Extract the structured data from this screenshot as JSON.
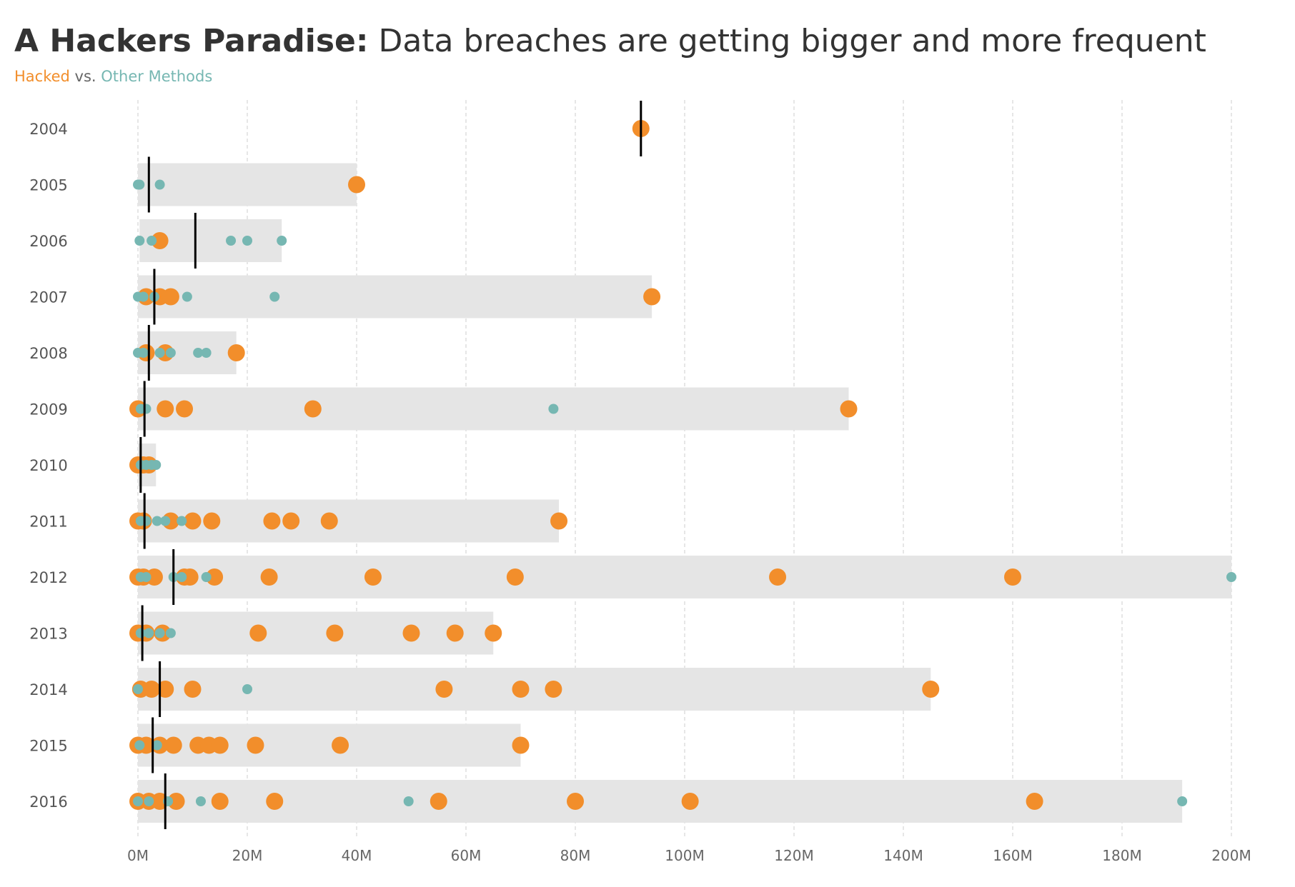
{
  "title": {
    "bold": "A Hackers Paradise:",
    "rest": " Data breaches are getting bigger and more frequent"
  },
  "subtitle": {
    "hacked": "Hacked",
    "vs": " vs. ",
    "other": "Other Methods"
  },
  "colors": {
    "hacked": "#F28E2B",
    "other": "#76B7B2",
    "range_bar": "#E5E5E5",
    "median": "#000000"
  },
  "chart_data": {
    "type": "scatter",
    "title": "A Hackers Paradise: Data breaches are getting bigger and more frequent",
    "xlabel": "",
    "ylabel": "",
    "xlim": [
      0,
      200
    ],
    "x_unit": "M",
    "x_ticks": [
      "0M",
      "20M",
      "40M",
      "60M",
      "80M",
      "100M",
      "120M",
      "140M",
      "160M",
      "180M",
      "200M"
    ],
    "grid": "vertical dashed",
    "legend": "subtitle",
    "years": [
      {
        "year": "2004",
        "range": [
          92,
          92
        ],
        "median": 92,
        "hacked": [
          92
        ],
        "other": []
      },
      {
        "year": "2005",
        "range": [
          0,
          40
        ],
        "median": 2,
        "hacked": [
          40
        ],
        "other": [
          0,
          0.3,
          4
        ]
      },
      {
        "year": "2006",
        "range": [
          0.3,
          26.3
        ],
        "median": 10.5,
        "hacked": [
          4
        ],
        "other": [
          0.3,
          2.5,
          17,
          20,
          26.3
        ]
      },
      {
        "year": "2007",
        "range": [
          0,
          94
        ],
        "median": 3,
        "hacked": [
          1.5,
          4,
          6,
          94
        ],
        "other": [
          0,
          1,
          3,
          9,
          25
        ]
      },
      {
        "year": "2008",
        "range": [
          0,
          18
        ],
        "median": 2,
        "hacked": [
          1.5,
          5,
          18
        ],
        "other": [
          0,
          1,
          4,
          6,
          11,
          12.5
        ]
      },
      {
        "year": "2009",
        "range": [
          0,
          130
        ],
        "median": 1.2,
        "hacked": [
          0,
          5,
          8.5,
          32,
          130
        ],
        "other": [
          0.5,
          1.5,
          76
        ]
      },
      {
        "year": "2010",
        "range": [
          0,
          3.3
        ],
        "median": 0.5,
        "hacked": [
          0,
          1,
          2
        ],
        "other": [
          0.5,
          1.5,
          2.5,
          3.3
        ]
      },
      {
        "year": "2011",
        "range": [
          0,
          77
        ],
        "median": 1.2,
        "hacked": [
          0,
          1,
          6,
          10,
          13.5,
          24.5,
          28,
          35,
          77
        ],
        "other": [
          0.5,
          1.5,
          3.5,
          5,
          8
        ]
      },
      {
        "year": "2012",
        "range": [
          0,
          200
        ],
        "median": 6.5,
        "hacked": [
          0,
          1,
          3,
          8.5,
          9.5,
          14,
          24,
          43,
          69,
          117,
          160
        ],
        "other": [
          0.5,
          1.5,
          6.5,
          8,
          12.5,
          200
        ]
      },
      {
        "year": "2013",
        "range": [
          0,
          65
        ],
        "median": 0.8,
        "hacked": [
          0,
          1.5,
          4.5,
          22,
          36,
          50,
          58,
          65
        ],
        "other": [
          0.5,
          2,
          4,
          6
        ]
      },
      {
        "year": "2014",
        "range": [
          0,
          145
        ],
        "median": 4,
        "hacked": [
          0.5,
          2.5,
          5,
          10,
          56,
          70,
          76,
          145
        ],
        "other": [
          0,
          20
        ]
      },
      {
        "year": "2015",
        "range": [
          0,
          70
        ],
        "median": 2.7,
        "hacked": [
          0,
          1.5,
          4,
          6.5,
          11,
          13,
          15,
          21.5,
          37,
          70
        ],
        "other": [
          0.3,
          3.5
        ]
      },
      {
        "year": "2016",
        "range": [
          0,
          191
        ],
        "median": 5,
        "hacked": [
          0,
          2,
          4,
          7,
          15,
          25,
          55,
          80,
          101,
          164
        ],
        "other": [
          0,
          2,
          5.5,
          11.5,
          49.5,
          191
        ]
      }
    ]
  }
}
